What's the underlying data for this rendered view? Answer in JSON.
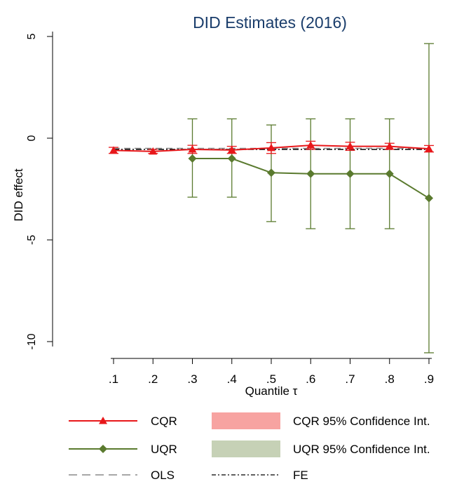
{
  "chart_data": {
    "type": "line",
    "title": "DID Estimates (2016)",
    "xlabel": "Quantile τ",
    "ylabel": "DID effect",
    "x": [
      0.1,
      0.2,
      0.3,
      0.4,
      0.5,
      0.6,
      0.7,
      0.8,
      0.9
    ],
    "x_tick_labels": [
      ".1",
      ".2",
      ".3",
      ".4",
      ".5",
      ".6",
      ".7",
      ".8",
      ".9"
    ],
    "y_ticks": [
      5,
      0,
      -5,
      -10
    ],
    "y_tick_labels": [
      "5",
      "0",
      "-5",
      "-10"
    ],
    "xlim": [
      0.1,
      0.9
    ],
    "ylim": [
      -10.5,
      5
    ],
    "grid": false,
    "legend_position": "bottom",
    "series": [
      {
        "name": "CQR",
        "color": "#e8171a",
        "marker": "triangle",
        "values": [
          -0.6,
          -0.65,
          -0.55,
          -0.58,
          -0.48,
          -0.35,
          -0.4,
          -0.4,
          -0.52
        ],
        "ci_lower": [
          -0.75,
          -0.75,
          -0.75,
          -0.75,
          -0.75,
          -0.55,
          -0.6,
          -0.55,
          -0.68
        ],
        "ci_upper": [
          -0.45,
          -0.55,
          -0.35,
          -0.4,
          -0.22,
          -0.15,
          -0.2,
          -0.25,
          -0.36
        ]
      },
      {
        "name": "UQR",
        "color": "#5a7a2e",
        "marker": "diamond",
        "values": [
          null,
          null,
          -1.0,
          -1.0,
          -1.7,
          -1.75,
          -1.75,
          -1.75,
          -2.95
        ],
        "ci_lower": [
          null,
          null,
          -2.9,
          -2.9,
          -4.1,
          -4.45,
          -4.45,
          -4.45,
          -10.55
        ],
        "ci_upper": [
          null,
          null,
          0.95,
          0.95,
          0.65,
          0.95,
          0.95,
          0.95,
          4.65
        ]
      },
      {
        "name": "OLS",
        "color": "#8a8a8a",
        "style": "dashed",
        "values": [
          -0.5,
          -0.5,
          -0.5,
          -0.5,
          -0.5,
          -0.5,
          -0.5,
          -0.5,
          -0.5
        ]
      },
      {
        "name": "FE",
        "color": "#000000",
        "style": "dash-dot",
        "values": [
          -0.55,
          -0.55,
          -0.55,
          -0.55,
          -0.55,
          -0.55,
          -0.55,
          -0.55,
          -0.55
        ]
      }
    ],
    "legend": [
      {
        "label": "CQR",
        "kind": "line-triangle",
        "color": "#e8171a"
      },
      {
        "label": "CQR 95% Confidence Int.",
        "kind": "area",
        "color": "#f7a3a1"
      },
      {
        "label": "UQR",
        "kind": "line-diamond",
        "color": "#5a7a2e"
      },
      {
        "label": "UQR 95% Confidence Int.",
        "kind": "area",
        "color": "#c6d1b6"
      },
      {
        "label": "OLS",
        "kind": "dashed",
        "color": "#8a8a8a"
      },
      {
        "label": "FE",
        "kind": "dash-dot",
        "color": "#000000"
      }
    ]
  }
}
